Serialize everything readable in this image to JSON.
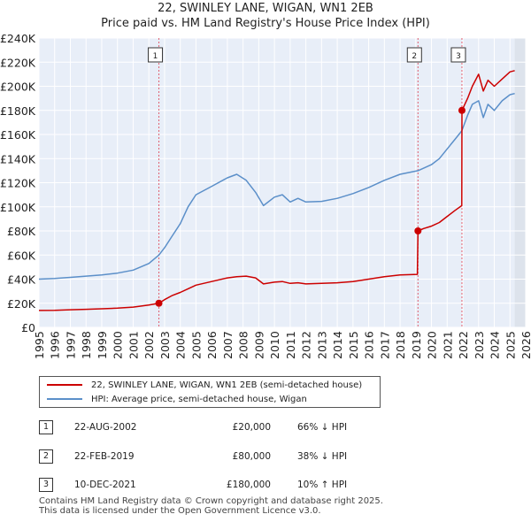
{
  "title": {
    "line1": "22, SWINLEY LANE, WIGAN, WN1 2EB",
    "line2": "Price paid vs. HM Land Registry's House Price Index (HPI)"
  },
  "chart_data": {
    "type": "line",
    "xlim": [
      1995,
      2026
    ],
    "ylim": [
      0,
      240000
    ],
    "y_ticks": [
      0,
      20000,
      40000,
      60000,
      80000,
      100000,
      120000,
      140000,
      160000,
      180000,
      200000,
      220000,
      240000
    ],
    "y_tick_labels": [
      "£0",
      "£20K",
      "£40K",
      "£60K",
      "£80K",
      "£100K",
      "£120K",
      "£140K",
      "£160K",
      "£180K",
      "£200K",
      "£220K",
      "£240K"
    ],
    "x_ticks": [
      1995,
      1996,
      1997,
      1998,
      1999,
      2000,
      2001,
      2002,
      2003,
      2004,
      2005,
      2006,
      2007,
      2008,
      2009,
      2010,
      2011,
      2012,
      2013,
      2014,
      2015,
      2016,
      2017,
      2018,
      2019,
      2020,
      2021,
      2022,
      2023,
      2024,
      2025,
      2026
    ],
    "x_tick_labels": [
      "1995",
      "1996",
      "1997",
      "1998",
      "1999",
      "2000",
      "2001",
      "2002",
      "2003",
      "2004",
      "2005",
      "2006",
      "2007",
      "2008",
      "2009",
      "2010",
      "2011",
      "2012",
      "2013",
      "2014",
      "2015",
      "2016",
      "2017",
      "2018",
      "2019",
      "2020",
      "2021",
      "2022",
      "2023",
      "2024",
      "2025",
      "2026"
    ],
    "grid": true,
    "shaded_region_from": 2025.3,
    "colors": {
      "price": "#cc0000",
      "hpi": "#5b8fc9",
      "vline": "#e06070",
      "grid": "#ffffff",
      "bg": "#e8eef8"
    },
    "series": [
      {
        "name": "22, SWINLEY LANE, WIGAN, WN1 2EB (semi-detached house)",
        "color": "#cc0000",
        "x": [
          1995.0,
          1996.0,
          1997.0,
          1998.0,
          1999.0,
          2000.0,
          2001.0,
          2002.0,
          2002.64,
          2003.0,
          2003.5,
          2004.0,
          2004.5,
          2005.0,
          2006.0,
          2007.0,
          2007.6,
          2008.2,
          2008.8,
          2009.3,
          2010.0,
          2010.5,
          2011.0,
          2011.5,
          2012.0,
          2013.0,
          2014.0,
          2015.0,
          2016.0,
          2017.0,
          2018.0,
          2019.1,
          2019.14,
          2019.5,
          2020.0,
          2020.5,
          2021.0,
          2021.5,
          2021.93,
          2021.94,
          2022.3,
          2022.6,
          2023.0,
          2023.3,
          2023.6,
          2024.0,
          2024.5,
          2025.0,
          2025.3
        ],
        "y": [
          14000,
          14200,
          14600,
          15000,
          15400,
          15900,
          16800,
          18500,
          20000,
          23000,
          26500,
          29000,
          32000,
          35000,
          38000,
          41000,
          42000,
          42500,
          41000,
          36000,
          37500,
          38000,
          36500,
          37000,
          36000,
          36500,
          37000,
          38000,
          40000,
          42000,
          43500,
          44000,
          80000,
          82000,
          84000,
          87000,
          92000,
          97000,
          101000,
          180000,
          190000,
          200000,
          210000,
          196000,
          205000,
          200000,
          206000,
          212000,
          213000
        ]
      },
      {
        "name": "HPI: Average price, semi-detached house, Wigan",
        "color": "#5b8fc9",
        "x": [
          1995.0,
          1996.0,
          1997.0,
          1998.0,
          1999.0,
          2000.0,
          2001.0,
          2002.0,
          2002.64,
          2003.0,
          2003.5,
          2004.0,
          2004.5,
          2005.0,
          2006.0,
          2007.0,
          2007.6,
          2008.2,
          2008.8,
          2009.3,
          2010.0,
          2010.5,
          2011.0,
          2011.5,
          2012.0,
          2013.0,
          2014.0,
          2015.0,
          2016.0,
          2017.0,
          2018.0,
          2019.14,
          2019.5,
          2020.0,
          2020.5,
          2021.0,
          2021.5,
          2021.93,
          2022.3,
          2022.6,
          2023.0,
          2023.3,
          2023.6,
          2024.0,
          2024.5,
          2025.0,
          2025.3
        ],
        "y": [
          40000,
          40500,
          41500,
          42500,
          43500,
          45000,
          47500,
          53000,
          60000,
          66000,
          76000,
          86000,
          100000,
          110000,
          117000,
          124000,
          127000,
          122000,
          112000,
          101000,
          108000,
          110000,
          104000,
          107000,
          104000,
          104500,
          107000,
          111000,
          116000,
          122000,
          127000,
          130000,
          132000,
          135000,
          140000,
          148000,
          156000,
          163000,
          176000,
          185000,
          188000,
          174000,
          185000,
          180000,
          188000,
          193000,
          194000
        ]
      }
    ],
    "markers": [
      {
        "label": "1",
        "x": 2002.64,
        "y": 20000,
        "series": 0
      },
      {
        "label": "2",
        "x": 2019.14,
        "y": 80000,
        "series": 0
      },
      {
        "label": "3",
        "x": 2021.94,
        "y": 180000,
        "series": 0
      }
    ]
  },
  "legend": {
    "items": [
      {
        "label": "22, SWINLEY LANE, WIGAN, WN1 2EB (semi-detached house)",
        "color": "#cc0000"
      },
      {
        "label": "HPI: Average price, semi-detached house, Wigan",
        "color": "#5b8fc9"
      }
    ]
  },
  "transactions": [
    {
      "num": "1",
      "date": "22-AUG-2002",
      "price": "£20,000",
      "hpi": "66% ↓ HPI"
    },
    {
      "num": "2",
      "date": "22-FEB-2019",
      "price": "£80,000",
      "hpi": "38% ↓ HPI"
    },
    {
      "num": "3",
      "date": "10-DEC-2021",
      "price": "£180,000",
      "hpi": "10% ↑ HPI"
    }
  ],
  "footer": {
    "line1": "Contains HM Land Registry data © Crown copyright and database right 2025.",
    "line2": "This data is licensed under the Open Government Licence v3.0."
  }
}
